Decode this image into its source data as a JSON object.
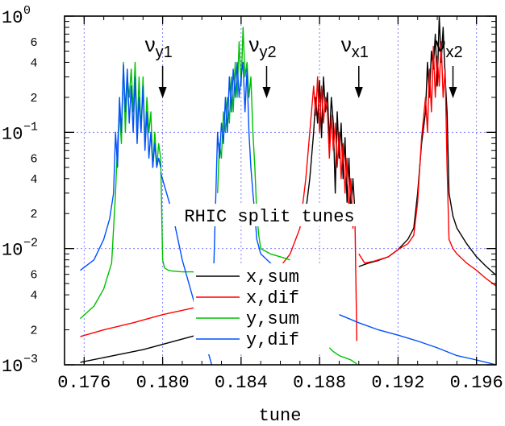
{
  "chart_data": {
    "type": "line",
    "title": "RHIC split tunes",
    "xlabel": "tune",
    "ylabel": "",
    "xlim": [
      0.175,
      0.197
    ],
    "ylim": [
      0.001,
      1
    ],
    "yscale": "log",
    "grid": true,
    "legend_placement": "bottom-center",
    "colors": {
      "x_sum": "#000000",
      "x_dif": "#ff0000",
      "y_sum": "#00c000",
      "y_dif": "#0050ff",
      "grid": "#8080ff"
    },
    "x_ticks": [
      "0.176",
      "0.180",
      "0.184",
      "0.188",
      "0.192",
      "0.196"
    ],
    "y_major_ticks": [
      {
        "base": "10",
        "exp": "0",
        "value": 1
      },
      {
        "base": "10",
        "exp": "−1",
        "value": 0.1
      },
      {
        "base": "10",
        "exp": "−2",
        "value": 0.01
      },
      {
        "base": "10",
        "exp": "−3",
        "value": 0.001
      }
    ],
    "y_minor_ticks": [
      {
        "label": "6",
        "value": 0.6
      },
      {
        "label": "4",
        "value": 0.4
      },
      {
        "label": "2",
        "value": 0.2
      },
      {
        "label": "6",
        "value": 0.06
      },
      {
        "label": "4",
        "value": 0.04
      },
      {
        "label": "2",
        "value": 0.02
      },
      {
        "label": "6",
        "value": 0.006
      },
      {
        "label": "4",
        "value": 0.004
      },
      {
        "label": "2",
        "value": 0.002
      }
    ],
    "annotations": [
      {
        "id": "vy1",
        "main": "ν",
        "sub": "y1",
        "x": 0.18
      },
      {
        "id": "vy2",
        "main": "ν",
        "sub": "y2",
        "x": 0.1853
      },
      {
        "id": "vx1",
        "main": "ν",
        "sub": "x1",
        "x": 0.19
      },
      {
        "id": "vx2",
        "main": "ν",
        "sub": "x2",
        "x": 0.1948
      }
    ],
    "series": [
      {
        "name": "x,sum",
        "key": "x_sum",
        "segments": [
          {
            "x": [
              0.1758,
              0.1775,
              0.179,
              0.1805,
              0.182
            ],
            "y": [
              0.00105,
              0.0012,
              0.00135,
              0.00158,
              0.00185
            ]
          },
          {
            "x": [
              0.1873,
              0.1875,
              0.1877,
              0.1878,
              0.1879,
              0.188,
              0.1881,
              0.1882,
              0.1883,
              0.1884,
              0.1885,
              0.1886,
              0.1887,
              0.1888,
              0.1889,
              0.189,
              0.1891,
              0.1892,
              0.1893,
              0.1894,
              0.1895,
              0.1896,
              0.1897,
              0.1898
            ],
            "y": [
              0.021,
              0.04,
              0.1,
              0.2,
              0.12,
              0.28,
              0.09,
              0.3,
              0.15,
              0.22,
              0.08,
              0.2,
              0.12,
              0.03,
              0.15,
              0.06,
              0.12,
              0.04,
              0.09,
              0.025,
              0.06,
              0.02,
              0.04,
              0.021
            ]
          },
          {
            "x": [
              0.19,
              0.1905,
              0.191,
              0.1915,
              0.192,
              0.1925,
              0.1928,
              0.193,
              0.1932,
              0.1934,
              0.1935,
              0.1936,
              0.1937,
              0.1938,
              0.1939,
              0.194,
              0.1941,
              0.1942,
              0.1943,
              0.1944,
              0.1945,
              0.1946,
              0.1948,
              0.195,
              0.1955,
              0.196,
              0.1965,
              0.1972
            ],
            "y": [
              0.007,
              0.0075,
              0.0079,
              0.0085,
              0.0098,
              0.012,
              0.015,
              0.03,
              0.08,
              0.15,
              0.4,
              0.2,
              0.5,
              0.35,
              0.7,
              0.25,
              1.0,
              0.4,
              0.8,
              0.3,
              0.15,
              0.03,
              0.019,
              0.015,
              0.011,
              0.0085,
              0.007,
              0.0055
            ]
          }
        ]
      },
      {
        "name": "x,dif",
        "key": "x_dif",
        "segments": [
          {
            "x": [
              0.1758,
              0.177,
              0.1785,
              0.18,
              0.182
            ],
            "y": [
              0.00175,
              0.002,
              0.0023,
              0.0027,
              0.0032
            ]
          },
          {
            "x": [
              0.186,
              0.1865,
              0.187,
              0.1873,
              0.1875,
              0.1877,
              0.1878,
              0.1879,
              0.188,
              0.1881,
              0.1882,
              0.1883,
              0.1884,
              0.1885,
              0.1886,
              0.1887,
              0.1888,
              0.1889,
              0.189,
              0.1891,
              0.1892,
              0.1893,
              0.1894,
              0.1895,
              0.1896,
              0.1897,
              0.1898,
              0.1899
            ],
            "y": [
              0.007,
              0.009,
              0.015,
              0.04,
              0.1,
              0.25,
              0.14,
              0.3,
              0.1,
              0.25,
              0.12,
              0.2,
              0.15,
              0.06,
              0.14,
              0.07,
              0.12,
              0.05,
              0.1,
              0.04,
              0.08,
              0.03,
              0.06,
              0.02,
              0.04,
              0.015,
              0.02,
              0.0016
            ]
          },
          {
            "x": [
              0.19,
              0.1903,
              0.1908,
              0.1915,
              0.192,
              0.1925,
              0.1928,
              0.193,
              0.1932,
              0.1934,
              0.1935,
              0.1936,
              0.1937,
              0.1938,
              0.1939,
              0.194,
              0.1941,
              0.1942,
              0.1943,
              0.1944,
              0.1945,
              0.1946,
              0.1948,
              0.195,
              0.1955,
              0.196,
              0.1965,
              0.1972
            ],
            "y": [
              0.009,
              0.0075,
              0.0078,
              0.0085,
              0.0098,
              0.011,
              0.013,
              0.025,
              0.09,
              0.2,
              0.1,
              0.35,
              0.15,
              0.55,
              0.2,
              0.45,
              0.25,
              0.6,
              0.2,
              0.35,
              0.05,
              0.012,
              0.01,
              0.009,
              0.0075,
              0.0065,
              0.0055,
              0.0045
            ]
          }
        ]
      },
      {
        "name": "y,sum",
        "key": "y_sum",
        "segments": [
          {
            "x": [
              0.1758,
              0.1765,
              0.177,
              0.1774,
              0.1776,
              0.1777,
              0.1778,
              0.1779,
              0.178,
              0.1781,
              0.1782,
              0.1783,
              0.1784,
              0.1785,
              0.1786,
              0.1787,
              0.1788,
              0.1789,
              0.179,
              0.1791,
              0.1792,
              0.1793,
              0.1794,
              0.1795,
              0.1796,
              0.1797,
              0.1798,
              0.1799
            ],
            "y": [
              0.0025,
              0.0032,
              0.0045,
              0.0075,
              0.03,
              0.08,
              0.15,
              0.08,
              0.4,
              0.1,
              0.3,
              0.2,
              0.35,
              0.15,
              0.4,
              0.1,
              0.3,
              0.1,
              0.3,
              0.08,
              0.2,
              0.1,
              0.15,
              0.05,
              0.1,
              0.05,
              0.08,
              0.06
            ]
          },
          {
            "x": [
              0.1799,
              0.18,
              0.1801,
              0.1803,
              0.1805,
              0.181,
              0.1815,
              0.182
            ],
            "y": [
              0.06,
              0.008,
              0.0068,
              0.0065,
              0.0064,
              0.0063,
              0.0063,
              0.0062
            ]
          },
          {
            "x": [
              0.1828,
              0.1829,
              0.183,
              0.1831,
              0.1832,
              0.1833,
              0.1834,
              0.1835,
              0.1836,
              0.1837,
              0.1838,
              0.1839,
              0.184,
              0.1841,
              0.1842,
              0.1843,
              0.1844,
              0.1845,
              0.1846,
              0.1847,
              0.1848,
              0.1849,
              0.185,
              0.1855,
              0.186,
              0.1865
            ],
            "y": [
              0.03,
              0.08,
              0.06,
              0.15,
              0.1,
              0.2,
              0.12,
              0.3,
              0.15,
              0.4,
              0.2,
              0.6,
              0.25,
              0.8,
              0.3,
              0.4,
              0.2,
              0.3,
              0.1,
              0.05,
              0.02,
              0.013,
              0.01,
              0.009,
              0.0085,
              0.008
            ]
          },
          {
            "x": [
              0.1885,
              0.1887,
              0.189,
              0.1893,
              0.1896,
              0.1899
            ],
            "y": [
              0.0014,
              0.0013,
              0.0012,
              0.00115,
              0.0011,
              0.00102
            ]
          }
        ]
      },
      {
        "name": "y,dif",
        "key": "y_dif",
        "segments": [
          {
            "x": [
              0.1758,
              0.1765,
              0.177,
              0.1773,
              0.1775,
              0.1776,
              0.1777,
              0.1778,
              0.1779,
              0.178,
              0.1781,
              0.1782,
              0.1783,
              0.1784,
              0.1785,
              0.1786,
              0.1787,
              0.1788,
              0.1789,
              0.179,
              0.1791,
              0.1792,
              0.1793,
              0.1794,
              0.1795,
              0.1796,
              0.1797,
              0.1798,
              0.1799
            ],
            "y": [
              0.0065,
              0.008,
              0.012,
              0.018,
              0.03,
              0.1,
              0.05,
              0.2,
              0.1,
              0.38,
              0.15,
              0.35,
              0.12,
              0.25,
              0.1,
              0.3,
              0.08,
              0.2,
              0.1,
              0.25,
              0.07,
              0.15,
              0.06,
              0.1,
              0.05,
              0.08,
              0.05,
              0.06,
              0.05
            ]
          },
          {
            "x": [
              0.1799,
              0.1805,
              0.181,
              0.1815,
              0.182,
              0.1825
            ],
            "y": [
              0.045,
              0.02,
              0.008,
              0.004,
              0.002,
              0.001
            ]
          },
          {
            "x": [
              0.1826,
              0.1828,
              0.1829,
              0.183,
              0.1831,
              0.1832,
              0.1833,
              0.1834,
              0.1835,
              0.1836,
              0.1837,
              0.1838,
              0.1839,
              0.184,
              0.1841,
              0.1842,
              0.1843,
              0.1844,
              0.1845,
              0.1846,
              0.1847,
              0.1848,
              0.185,
              0.1855,
              0.186,
              0.1865
            ],
            "y": [
              0.006,
              0.1,
              0.06,
              0.12,
              0.08,
              0.2,
              0.1,
              0.3,
              0.15,
              0.35,
              0.2,
              0.4,
              0.2,
              0.3,
              0.4,
              0.15,
              0.35,
              0.1,
              0.05,
              0.03,
              0.02,
              0.012,
              0.009,
              0.0075,
              0.0065,
              0.006
            ]
          },
          {
            "x": [
              0.189,
              0.19,
              0.191,
              0.192,
              0.193,
              0.194,
              0.195,
              0.196,
              0.197
            ],
            "y": [
              0.0027,
              0.0023,
              0.002,
              0.0018,
              0.0016,
              0.0014,
              0.0012,
              0.0011,
              0.001
            ]
          }
        ]
      }
    ]
  }
}
